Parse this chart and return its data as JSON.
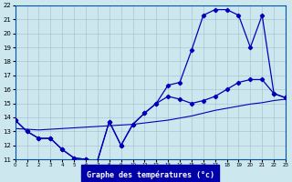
{
  "xlabel": "Graphe des températures (°c)",
  "xlim": [
    0,
    23
  ],
  "ylim": [
    11,
    22
  ],
  "yticks": [
    11,
    12,
    13,
    14,
    15,
    16,
    17,
    18,
    19,
    20,
    21,
    22
  ],
  "xticks": [
    0,
    1,
    2,
    3,
    4,
    5,
    6,
    7,
    8,
    9,
    10,
    11,
    12,
    13,
    14,
    15,
    16,
    17,
    18,
    19,
    20,
    21,
    22,
    23
  ],
  "background_color": "#cce8ee",
  "grid_color": "#aabbcc",
  "line_color": "#0000bb",
  "curve1_x": [
    0,
    1,
    2,
    3,
    4,
    5,
    6,
    7,
    8,
    9,
    10,
    11,
    12,
    13,
    14,
    15,
    16,
    17,
    18,
    19,
    20,
    21,
    22,
    23
  ],
  "curve1_y": [
    13.8,
    13.0,
    12.5,
    12.5,
    11.7,
    11.1,
    11.0,
    10.9,
    13.7,
    12.0,
    13.5,
    14.3,
    15.0,
    15.5,
    15.3,
    15.0,
    15.2,
    15.5,
    16.0,
    16.5,
    16.7,
    16.7,
    15.7,
    15.4
  ],
  "curve2_x": [
    0,
    1,
    2,
    3,
    4,
    5,
    6,
    7,
    8,
    9,
    10,
    11,
    12,
    13,
    14,
    15,
    16,
    17,
    18,
    19,
    20,
    21,
    22,
    23
  ],
  "curve2_y": [
    13.8,
    13.0,
    12.5,
    12.5,
    11.7,
    11.1,
    11.0,
    10.9,
    13.7,
    12.0,
    13.5,
    14.3,
    15.0,
    16.3,
    16.5,
    18.8,
    21.3,
    21.7,
    21.7,
    21.3,
    19.0,
    21.3,
    15.7,
    15.4
  ],
  "curve3_x": [
    0,
    1,
    2,
    3,
    4,
    5,
    6,
    7,
    8,
    9,
    10,
    11,
    12,
    13,
    14,
    15,
    16,
    17,
    18,
    19,
    20,
    21,
    22,
    23
  ],
  "curve3_y": [
    13.2,
    13.15,
    13.1,
    13.15,
    13.2,
    13.25,
    13.3,
    13.35,
    13.4,
    13.45,
    13.5,
    13.6,
    13.7,
    13.8,
    13.95,
    14.1,
    14.3,
    14.5,
    14.65,
    14.8,
    14.95,
    15.05,
    15.2,
    15.3
  ]
}
